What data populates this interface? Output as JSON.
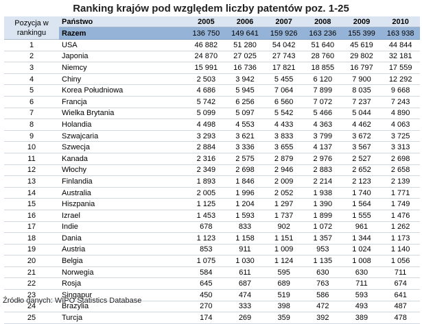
{
  "chart_data": {
    "type": "table",
    "title": "Ranking krajów pod względem liczby patentów poz. 1-25",
    "headers": {
      "rank": "Pozycja w rankingu",
      "country": "Państwo",
      "years": [
        "2005",
        "2006",
        "2007",
        "2008",
        "2009",
        "2010"
      ]
    },
    "total": {
      "label": "Razem",
      "values": [
        "136 750",
        "149 641",
        "159 926",
        "163 236",
        "155 399",
        "163 938"
      ]
    },
    "rows": [
      {
        "rank": "1",
        "country": "USA",
        "values": [
          "46 882",
          "51 280",
          "54 042",
          "51 640",
          "45 619",
          "44 844"
        ]
      },
      {
        "rank": "2",
        "country": "Japonia",
        "values": [
          "24 870",
          "27 025",
          "27 743",
          "28 760",
          "29 802",
          "32 181"
        ]
      },
      {
        "rank": "3",
        "country": "Niemcy",
        "values": [
          "15 991",
          "16 736",
          "17 821",
          "18 855",
          "16 797",
          "17 559"
        ]
      },
      {
        "rank": "4",
        "country": "Chiny",
        "values": [
          "2 503",
          "3 942",
          "5 455",
          "6 120",
          "7 900",
          "12 292"
        ]
      },
      {
        "rank": "5",
        "country": "Korea Południowa",
        "values": [
          "4 686",
          "5 945",
          "7 064",
          "7 899",
          "8 035",
          "9 668"
        ]
      },
      {
        "rank": "6",
        "country": "Francja",
        "values": [
          "5 742",
          "6 256",
          "6 560",
          "7 072",
          "7 237",
          "7 243"
        ]
      },
      {
        "rank": "7",
        "country": "Wielka Brytania",
        "values": [
          "5 099",
          "5 097",
          "5 542",
          "5 466",
          "5 044",
          "4 890"
        ]
      },
      {
        "rank": "8",
        "country": "Holandia",
        "values": [
          "4 498",
          "4 553",
          "4 433",
          "4 363",
          "4 462",
          "4 063"
        ]
      },
      {
        "rank": "9",
        "country": "Szwajcaria",
        "values": [
          "3 293",
          "3 621",
          "3 833",
          "3 799",
          "3 672",
          "3 725"
        ]
      },
      {
        "rank": "10",
        "country": "Szwecja",
        "values": [
          "2 884",
          "3 336",
          "3 655",
          "4 137",
          "3 567",
          "3 313"
        ]
      },
      {
        "rank": "11",
        "country": "Kanada",
        "values": [
          "2 316",
          "2 575",
          "2 879",
          "2 976",
          "2 527",
          "2 698"
        ]
      },
      {
        "rank": "12",
        "country": "Włochy",
        "values": [
          "2 349",
          "2 698",
          "2 946",
          "2 883",
          "2 652",
          "2 658"
        ]
      },
      {
        "rank": "13",
        "country": "Finlandia",
        "values": [
          "1 893",
          "1 846",
          "2 009",
          "2 214",
          "2 123",
          "2 139"
        ]
      },
      {
        "rank": "14",
        "country": "Australia",
        "values": [
          "2 005",
          "1 996",
          "2 052",
          "1 938",
          "1 740",
          "1 771"
        ]
      },
      {
        "rank": "15",
        "country": "Hiszpania",
        "values": [
          "1 125",
          "1 204",
          "1 297",
          "1 390",
          "1 564",
          "1 749"
        ]
      },
      {
        "rank": "16",
        "country": "Izrael",
        "values": [
          "1 453",
          "1 593",
          "1 737",
          "1 899",
          "1 555",
          "1 476"
        ]
      },
      {
        "rank": "17",
        "country": "Indie",
        "values": [
          "678",
          "833",
          "902",
          "1 072",
          "961",
          "1 262"
        ]
      },
      {
        "rank": "18",
        "country": "Dania",
        "values": [
          "1 123",
          "1 158",
          "1 151",
          "1 357",
          "1 344",
          "1 173"
        ]
      },
      {
        "rank": "19",
        "country": "Austria",
        "values": [
          "853",
          "911",
          "1 009",
          "953",
          "1 024",
          "1 140"
        ]
      },
      {
        "rank": "20",
        "country": "Belgia",
        "values": [
          "1 075",
          "1 030",
          "1 124",
          "1 135",
          "1 008",
          "1 056"
        ]
      },
      {
        "rank": "21",
        "country": "Norwegia",
        "values": [
          "584",
          "611",
          "595",
          "630",
          "630",
          "711"
        ]
      },
      {
        "rank": "22",
        "country": "Rosja",
        "values": [
          "645",
          "687",
          "689",
          "763",
          "711",
          "674"
        ]
      },
      {
        "rank": "23",
        "country": "Singapur",
        "values": [
          "450",
          "474",
          "519",
          "586",
          "593",
          "641"
        ]
      },
      {
        "rank": "24",
        "country": "Brazylia",
        "values": [
          "270",
          "333",
          "398",
          "472",
          "493",
          "487"
        ]
      },
      {
        "rank": "25",
        "country": "Turcja",
        "values": [
          "174",
          "269",
          "359",
          "392",
          "389",
          "478"
        ]
      }
    ],
    "source": "Źródło danych: WIPO Statistics Database"
  }
}
